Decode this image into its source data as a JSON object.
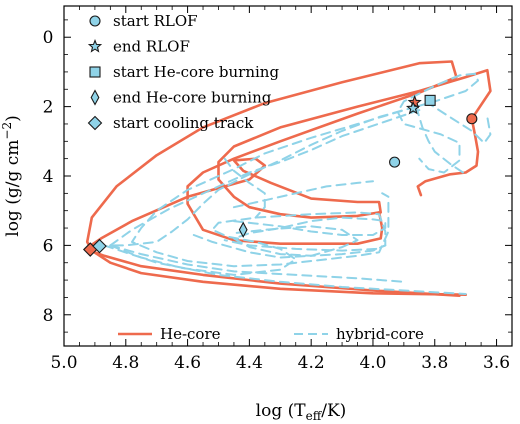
{
  "chart_data": {
    "type": "line",
    "xlabel_main": "log (T",
    "xlabel_sub": "eff",
    "xlabel_tail": "/K)",
    "ylabel_main": "log (g/g cm",
    "ylabel_sup": "−2",
    "ylabel_tail": ")",
    "xlim": [
      5.0,
      3.55
    ],
    "ylim": [
      8.9,
      -0.9
    ],
    "x_ticks": [
      5.0,
      4.8,
      4.6,
      4.4,
      4.2,
      4.0,
      3.8,
      3.6
    ],
    "x_tick_labels": [
      "5.0",
      "4.8",
      "4.6",
      "4.4",
      "4.2",
      "4.0",
      "3.8",
      "3.6"
    ],
    "y_ticks": [
      0,
      2,
      4,
      6,
      8
    ],
    "y_tick_labels": [
      "0",
      "2",
      "4",
      "6",
      "8"
    ],
    "colors": {
      "he_core": "#ee6a4d",
      "hybrid_core": "#8fd3e8",
      "marker_edge": "#1a1a1a"
    },
    "series": [
      {
        "name": "He-core",
        "style": "solid",
        "color": "#ee6a4d",
        "segments": [
          [
            [
              3.68,
              2.35
            ],
            [
              3.67,
              2.8
            ],
            [
              3.66,
              3.3
            ],
            [
              3.665,
              3.7
            ],
            [
              3.7,
              3.9
            ],
            [
              3.75,
              3.95
            ],
            [
              3.79,
              4.05
            ],
            [
              3.83,
              4.15
            ],
            [
              3.855,
              4.3
            ],
            [
              3.845,
              4.55
            ]
          ],
          [
            [
              3.68,
              2.35
            ],
            [
              3.62,
              1.55
            ],
            [
              3.63,
              0.95
            ],
            [
              3.7,
              1.15
            ],
            [
              3.85,
              1.55
            ],
            [
              4.05,
              2.0
            ],
            [
              4.3,
              2.6
            ],
            [
              4.45,
              3.15
            ],
            [
              4.5,
              3.6
            ],
            [
              4.5,
              4.1
            ],
            [
              4.45,
              4.6
            ],
            [
              4.4,
              4.9
            ],
            [
              4.3,
              5.1
            ],
            [
              4.2,
              5.2
            ],
            [
              4.05,
              5.15
            ],
            [
              3.98,
              5.05
            ]
          ],
          [
            [
              3.98,
              5.05
            ],
            [
              3.97,
              5.5
            ],
            [
              3.975,
              5.8
            ],
            [
              4.05,
              5.95
            ],
            [
              4.3,
              5.95
            ],
            [
              4.45,
              5.85
            ],
            [
              4.55,
              5.55
            ],
            [
              4.6,
              4.8
            ],
            [
              4.6,
              4.3
            ],
            [
              4.55,
              3.9
            ],
            [
              4.45,
              3.5
            ],
            [
              4.3,
              3.0
            ],
            [
              4.05,
              2.2
            ],
            [
              3.85,
              1.6
            ],
            [
              3.73,
              1.15
            ],
            [
              3.745,
              0.7
            ],
            [
              3.85,
              0.75
            ],
            [
              4.1,
              1.3
            ],
            [
              4.35,
              1.9
            ],
            [
              4.55,
              2.6
            ],
            [
              4.7,
              3.4
            ],
            [
              4.83,
              4.3
            ],
            [
              4.91,
              5.2
            ],
            [
              4.925,
              5.9
            ],
            [
              4.91,
              6.15
            ],
            [
              4.85,
              6.5
            ],
            [
              4.75,
              6.8
            ],
            [
              4.55,
              7.05
            ],
            [
              4.3,
              7.25
            ],
            [
              4.0,
              7.38
            ],
            [
              3.7,
              7.42
            ]
          ],
          [
            [
              4.93,
              6.1
            ],
            [
              4.88,
              5.8
            ],
            [
              4.78,
              5.3
            ],
            [
              4.6,
              4.6
            ],
            [
              4.4,
              4.1
            ],
            [
              4.35,
              3.7
            ],
            [
              4.38,
              3.5
            ],
            [
              4.45,
              3.55
            ],
            [
              4.42,
              3.85
            ],
            [
              4.33,
              4.2
            ],
            [
              4.2,
              4.65
            ],
            [
              4.05,
              4.75
            ],
            [
              3.98,
              4.75
            ],
            [
              3.975,
              5.05
            ]
          ],
          [
            [
              4.93,
              6.1
            ],
            [
              4.87,
              6.3
            ],
            [
              4.75,
              6.6
            ],
            [
              4.55,
              6.85
            ],
            [
              4.3,
              7.1
            ],
            [
              4.0,
              7.3
            ],
            [
              3.72,
              7.45
            ]
          ]
        ]
      },
      {
        "name": "hybrid-core",
        "style": "dashed",
        "color": "#8fd3e8",
        "segments": [
          [
            [
              3.86,
              2.0
            ],
            [
              3.8,
              1.85
            ],
            [
              3.7,
              1.55
            ],
            [
              3.66,
              1.25
            ],
            [
              3.67,
              1.05
            ],
            [
              3.72,
              1.1
            ],
            [
              3.8,
              1.4
            ],
            [
              3.9,
              1.85
            ],
            [
              3.92,
              2.15
            ],
            [
              3.9,
              2.5
            ],
            [
              3.78,
              2.8
            ],
            [
              3.72,
              3.05
            ],
            [
              3.72,
              3.55
            ],
            [
              3.77,
              3.9
            ],
            [
              3.82,
              3.8
            ],
            [
              3.85,
              3.5
            ]
          ],
          [
            [
              3.86,
              2.0
            ],
            [
              3.98,
              2.3
            ],
            [
              4.1,
              2.7
            ],
            [
              4.2,
              3.1
            ],
            [
              4.3,
              3.55
            ],
            [
              4.4,
              3.95
            ],
            [
              4.5,
              4.4
            ],
            [
              4.55,
              4.8
            ],
            [
              4.6,
              5.25
            ],
            [
              4.65,
              5.6
            ],
            [
              4.7,
              5.9
            ],
            [
              4.8,
              6.0
            ],
            [
              4.85,
              6.0
            ]
          ],
          [
            [
              3.86,
              2.0
            ],
            [
              4.05,
              2.5
            ],
            [
              4.2,
              2.9
            ],
            [
              4.35,
              3.35
            ],
            [
              4.45,
              3.8
            ],
            [
              4.6,
              4.4
            ],
            [
              4.7,
              5.0
            ],
            [
              4.75,
              5.5
            ],
            [
              4.78,
              5.9
            ],
            [
              4.7,
              6.2
            ],
            [
              4.6,
              6.45
            ],
            [
              4.45,
              6.6
            ],
            [
              4.3,
              6.55
            ],
            [
              4.15,
              6.4
            ],
            [
              4.05,
              6.3
            ],
            [
              3.98,
              6.2
            ],
            [
              3.95,
              5.6
            ],
            [
              3.95,
              5.0
            ],
            [
              3.95,
              4.6
            ],
            [
              3.97,
              4.5
            ]
          ],
          [
            [
              4.85,
              6.0
            ],
            [
              4.78,
              5.55
            ],
            [
              4.66,
              4.95
            ],
            [
              4.5,
              4.3
            ],
            [
              4.4,
              3.9
            ],
            [
              4.3,
              3.6
            ],
            [
              4.2,
              3.25
            ],
            [
              4.1,
              2.85
            ],
            [
              3.95,
              2.4
            ],
            [
              3.85,
              2.1
            ]
          ],
          [
            [
              4.85,
              6.0
            ],
            [
              4.75,
              6.35
            ],
            [
              4.62,
              6.65
            ],
            [
              4.45,
              6.85
            ],
            [
              4.3,
              6.7
            ],
            [
              4.25,
              6.4
            ],
            [
              4.3,
              6.1
            ],
            [
              4.38,
              5.9
            ],
            [
              4.47,
              5.75
            ],
            [
              4.52,
              5.55
            ],
            [
              4.5,
              5.35
            ],
            [
              4.38,
              5.2
            ],
            [
              4.2,
              5.1
            ],
            [
              4.05,
              5.05
            ],
            [
              3.98,
              5.1
            ],
            [
              3.96,
              5.6
            ],
            [
              3.96,
              6.0
            ],
            [
              3.99,
              6.1
            ],
            [
              4.1,
              6.15
            ],
            [
              4.25,
              6.1
            ],
            [
              4.4,
              6.0
            ],
            [
              4.48,
              5.85
            ]
          ],
          [
            [
              4.45,
              5.3
            ],
            [
              4.3,
              5.45
            ],
            [
              4.2,
              5.6
            ],
            [
              4.1,
              5.7
            ],
            [
              4.0,
              5.7
            ],
            [
              3.96,
              5.5
            ],
            [
              3.96,
              5.3
            ],
            [
              4.0,
              5.25
            ],
            [
              4.1,
              5.2
            ],
            [
              4.2,
              5.3
            ],
            [
              4.3,
              5.5
            ],
            [
              4.4,
              5.65
            ],
            [
              4.45,
              5.8
            ],
            [
              4.4,
              6.05
            ],
            [
              4.3,
              6.25
            ],
            [
              4.2,
              6.3
            ],
            [
              4.1,
              6.25
            ],
            [
              4.0,
              6.15
            ],
            [
              3.96,
              6.0
            ]
          ],
          [
            [
              4.58,
              5.7
            ],
            [
              4.52,
              5.9
            ],
            [
              4.4,
              6.2
            ],
            [
              4.3,
              6.35
            ],
            [
              4.2,
              6.3
            ],
            [
              4.1,
              6.05
            ],
            [
              4.05,
              5.85
            ],
            [
              4.1,
              5.55
            ],
            [
              4.2,
              5.45
            ],
            [
              4.35,
              5.55
            ],
            [
              4.45,
              5.65
            ]
          ],
          [
            [
              4.45,
              4.9
            ],
            [
              4.35,
              4.7
            ],
            [
              4.25,
              4.5
            ],
            [
              4.15,
              4.3
            ],
            [
              4.05,
              4.2
            ],
            [
              4.0,
              4.15
            ]
          ],
          [
            [
              4.48,
              3.5
            ],
            [
              4.45,
              3.85
            ],
            [
              4.4,
              4.2
            ],
            [
              4.35,
              4.5
            ],
            [
              4.35,
              4.9
            ],
            [
              4.38,
              5.2
            ]
          ],
          [
            [
              4.85,
              6.0
            ],
            [
              4.75,
              6.25
            ],
            [
              4.6,
              6.55
            ],
            [
              4.45,
              6.75
            ],
            [
              4.25,
              6.85
            ],
            [
              4.05,
              6.95
            ],
            [
              3.9,
              7.05
            ]
          ],
          [
            [
              4.87,
              6.0
            ],
            [
              4.7,
              6.5
            ],
            [
              4.5,
              6.85
            ],
            [
              4.3,
              7.05
            ],
            [
              4.1,
              7.2
            ],
            [
              3.9,
              7.3
            ],
            [
              3.7,
              7.4
            ]
          ],
          [
            [
              3.86,
              2.0
            ],
            [
              3.84,
              2.6
            ],
            [
              3.82,
              3.0
            ],
            [
              3.8,
              3.3
            ],
            [
              3.75,
              3.65
            ],
            [
              3.7,
              3.95
            ]
          ],
          [
            [
              3.83,
              1.85
            ],
            [
              3.76,
              2.25
            ],
            [
              3.68,
              2.7
            ],
            [
              3.64,
              3.05
            ],
            [
              3.62,
              2.8
            ],
            [
              3.63,
              2.3
            ]
          ]
        ]
      }
    ],
    "markers": [
      {
        "type": "circle",
        "label": "start RLOF",
        "color": "#ee6a4d",
        "x": 3.68,
        "y": 2.35
      },
      {
        "type": "circle",
        "label": "start RLOF",
        "color": "#8fd3e8",
        "x": 3.93,
        "y": 3.6
      },
      {
        "type": "star",
        "label": "end RLOF",
        "color": "#ee6a4d",
        "x": 3.865,
        "y": 1.88
      },
      {
        "type": "star",
        "label": "end RLOF",
        "color": "#8fd3e8",
        "x": 3.87,
        "y": 2.05
      },
      {
        "type": "square",
        "label": "start He-core burning",
        "color": "#8fd3e8",
        "x": 3.815,
        "y": 1.82
      },
      {
        "type": "thin_diamond",
        "label": "end He-core burning",
        "color": "#8fd3e8",
        "x": 4.42,
        "y": 5.55
      },
      {
        "type": "diamond",
        "label": "start cooling track",
        "color": "#ee6a4d",
        "x": 4.915,
        "y": 6.12
      },
      {
        "type": "diamond",
        "label": "start cooling track",
        "color": "#8fd3e8",
        "x": 4.885,
        "y": 6.02
      }
    ],
    "legend_markers": [
      {
        "type": "circle",
        "label": "start RLOF"
      },
      {
        "type": "star",
        "label": "end RLOF"
      },
      {
        "type": "square",
        "label": "start He-core burning"
      },
      {
        "type": "thin_diamond",
        "label": "end He-core burning"
      },
      {
        "type": "diamond",
        "label": "start cooling track"
      }
    ],
    "legend_lines": [
      {
        "style": "solid",
        "label": "He-core"
      },
      {
        "style": "dashed",
        "label": "hybrid-core"
      }
    ],
    "legend_marker_color": "#8fd3e8",
    "legend_placement": "top-left (markers), bottom (lines)",
    "grid": false
  }
}
